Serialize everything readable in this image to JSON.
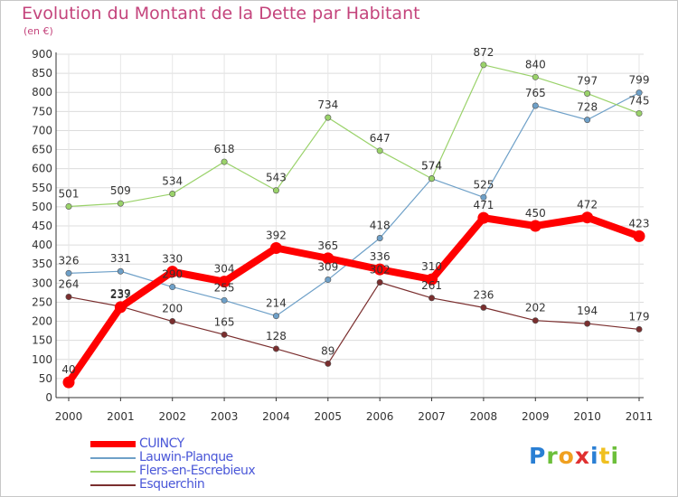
{
  "header": {
    "title": "Evolution du Montant de la Dette par Habitant",
    "subtitle": "(en €)"
  },
  "chart_data": {
    "type": "line",
    "x": [
      "2000",
      "2001",
      "2002",
      "2003",
      "2004",
      "2005",
      "2006",
      "2007",
      "2008",
      "2009",
      "2010",
      "2011"
    ],
    "ylim": [
      0,
      900
    ],
    "yticks": [
      "0",
      "50",
      "100",
      "150",
      "200",
      "250",
      "300",
      "350",
      "400",
      "450",
      "500",
      "550",
      "600",
      "650",
      "700",
      "750",
      "800",
      "850",
      "900"
    ],
    "grid": true,
    "legend": "bottom-left",
    "series": [
      {
        "name": "CUINCY",
        "color": "#ff0000",
        "values": [
          40,
          237,
          330,
          304,
          392,
          365,
          336,
          310,
          471,
          450,
          472,
          423
        ],
        "labels": [
          "40",
          "237",
          "330",
          "304",
          "392",
          "365",
          "336",
          "310",
          "471",
          "450",
          "472",
          "423"
        ]
      },
      {
        "name": "Lauwin-Planque",
        "color": "#6ea0c8",
        "values": [
          326,
          331,
          290,
          255,
          214,
          309,
          418,
          574,
          525,
          765,
          728,
          799
        ],
        "labels": [
          "326",
          "331",
          "290",
          "255",
          "214",
          "309",
          "418",
          "574",
          "525",
          "765",
          "728",
          "799"
        ]
      },
      {
        "name": "Flers-en-Escrebieux",
        "color": "#9ad26a",
        "values": [
          501,
          509,
          534,
          618,
          543,
          734,
          647,
          574,
          872,
          840,
          797,
          745
        ],
        "labels": [
          "501",
          "509",
          "534",
          "618",
          "543",
          "734",
          "647",
          "574",
          "872",
          "840",
          "797",
          "745"
        ]
      },
      {
        "name": "Esquerchin",
        "color": "#7a2e2e",
        "values": [
          264,
          239,
          200,
          165,
          128,
          89,
          302,
          261,
          236,
          202,
          194,
          179
        ],
        "labels": [
          "264",
          "239",
          "200",
          "165",
          "128",
          "89",
          "302",
          "261",
          "236",
          "202",
          "194",
          "179"
        ]
      }
    ]
  },
  "logo": {
    "letters": [
      "P",
      "r",
      "o",
      "x",
      "i",
      "t",
      "i"
    ],
    "colors": [
      "#2a7fd4",
      "#6cbf3a",
      "#f0a020",
      "#e03030",
      "#2a7fd4",
      "#f0c020",
      "#6cbf3a"
    ]
  }
}
